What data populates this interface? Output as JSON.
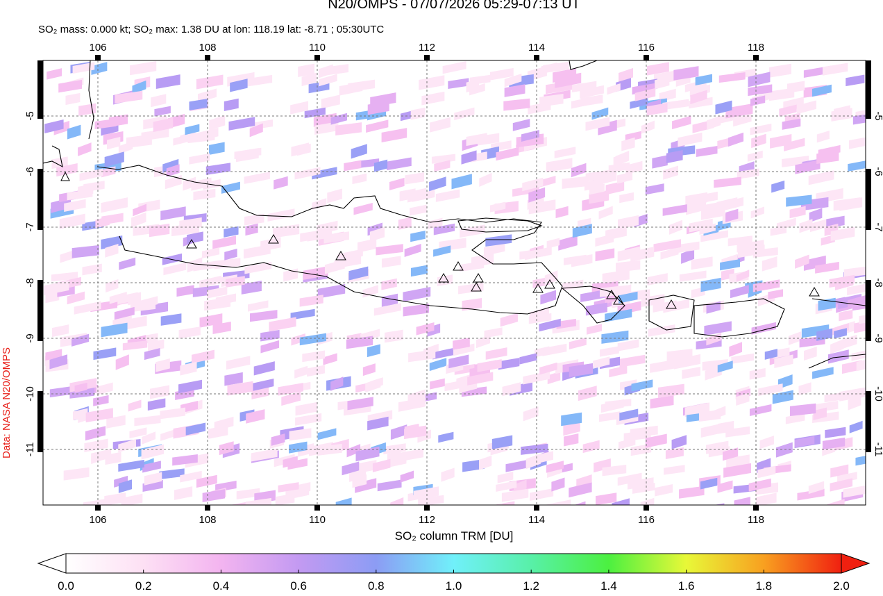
{
  "chart_data": {
    "type": "map",
    "title": "N20/OMPS - 07/07/2026 05:29-07:13 UT",
    "subtitle": "SO₂ mass: 0.000 kt; SO₂ max: 1.38 DU at lon: 118.19 lat: -8.71 ; 05:30UTC",
    "xlim": [
      105,
      120
    ],
    "ylim": [
      -12,
      -4
    ],
    "xticks": [
      106,
      108,
      110,
      112,
      114,
      116,
      118
    ],
    "yticks": [
      -11,
      -10,
      -9,
      -8,
      -7,
      -6,
      -5
    ],
    "grid": true,
    "colorbar_label": "SO₂ column TRM [DU]",
    "colorbar_lim": [
      0,
      2
    ],
    "colorbar_ticks": [
      {
        "value": 0,
        "label": "0.0"
      },
      {
        "value": 0.2,
        "label": "0.2"
      },
      {
        "value": 0.4,
        "label": "0.4"
      },
      {
        "value": 0.6,
        "label": "0.6"
      },
      {
        "value": 0.8,
        "label": "0.8"
      },
      {
        "value": 1,
        "label": "1.0"
      },
      {
        "value": 1.2,
        "label": "1.2"
      },
      {
        "value": 1.4,
        "label": "1.4"
      },
      {
        "value": 1.6,
        "label": "1.6"
      },
      {
        "value": 1.8,
        "label": "1.8"
      },
      {
        "value": 2,
        "label": "2.0"
      }
    ],
    "credit": "Data: NASA N20/OMPS"
  }
}
